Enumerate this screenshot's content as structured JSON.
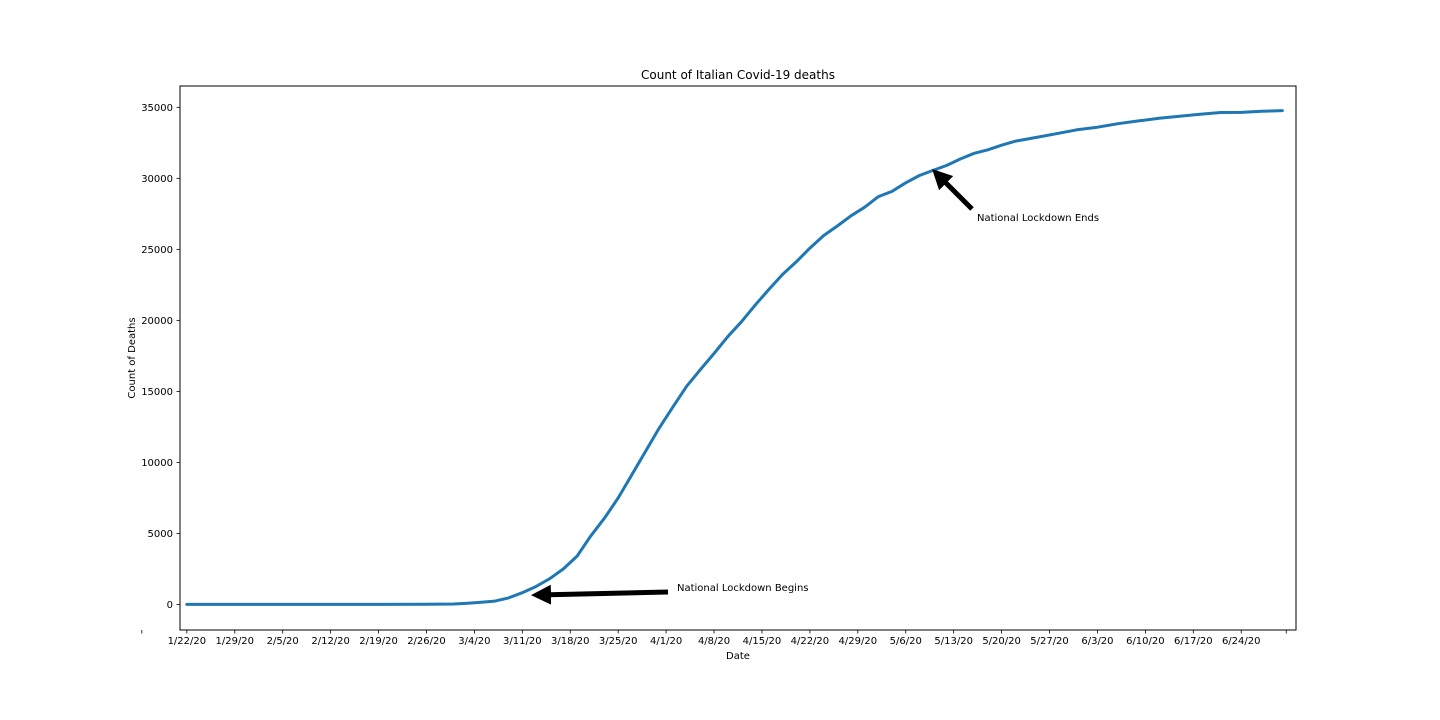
{
  "chart_data": {
    "type": "line",
    "title": "Count of Italian Covid-19 deaths",
    "xlabel": "Date",
    "ylabel": "Count of Deaths",
    "ylim": [
      -1800,
      36500
    ],
    "yticks": [
      0,
      5000,
      10000,
      15000,
      20000,
      25000,
      30000,
      35000
    ],
    "xtick_labels": [
      "1/22/20",
      "1/29/20",
      "2/5/20",
      "2/12/20",
      "2/19/20",
      "2/26/20",
      "3/4/20",
      "3/11/20",
      "3/18/20",
      "3/25/20",
      "4/1/20",
      "4/8/20",
      "4/15/20",
      "4/22/20",
      "4/29/20",
      "5/6/20",
      "5/13/20",
      "5/20/20",
      "5/27/20",
      "6/3/20",
      "6/10/20",
      "6/17/20",
      "6/24/20"
    ],
    "xlim": [
      "1/21/20",
      "7/2/20"
    ],
    "grid": false,
    "line_color": "#1f77b4",
    "series": [
      {
        "x": [
          "1/22/20",
          "2/19/20",
          "2/26/20",
          "3/1/20",
          "3/3/20",
          "3/5/20",
          "3/7/20",
          "3/9/20",
          "3/11/20",
          "3/13/20",
          "3/15/20",
          "3/17/20",
          "3/19/20",
          "3/21/20",
          "3/23/20",
          "3/25/20",
          "3/27/20",
          "3/29/20",
          "3/31/20",
          "4/2/20",
          "4/4/20",
          "4/6/20",
          "4/8/20",
          "4/10/20",
          "4/12/20",
          "4/14/20",
          "4/16/20",
          "4/18/20",
          "4/20/20",
          "4/22/20",
          "4/24/20",
          "4/26/20",
          "4/28/20",
          "4/30/20",
          "5/2/20",
          "5/4/20",
          "5/6/20",
          "5/8/20",
          "5/10/20",
          "5/12/20",
          "5/14/20",
          "5/16/20",
          "5/18/20",
          "5/20/20",
          "5/22/20",
          "5/25/20",
          "5/28/20",
          "5/31/20",
          "6/3/20",
          "6/6/20",
          "6/9/20",
          "6/12/20",
          "6/15/20",
          "6/18/20",
          "6/21/20",
          "6/24/20",
          "6/27/20",
          "6/30/20"
        ],
        "values": [
          0,
          0,
          12,
          34,
          79,
          148,
          233,
          463,
          827,
          1266,
          1809,
          2503,
          3405,
          4825,
          6077,
          7503,
          9134,
          10779,
          12428,
          13915,
          15362,
          16523,
          17669,
          18849,
          19899,
          21067,
          22170,
          23227,
          24114,
          25085,
          25969,
          26644,
          27359,
          27967,
          28710,
          29079,
          29684,
          30201,
          30560,
          30911,
          31368,
          31763,
          32007,
          32330,
          32616,
          32877,
          33142,
          33415,
          33601,
          33846,
          34043,
          34223,
          34371,
          34514,
          34634,
          34644,
          34716,
          34767
        ]
      }
    ],
    "annotations": [
      {
        "text": "National Lockdown Begins",
        "x": "3/11/20",
        "y": 827
      },
      {
        "text": "National Lockdown Ends",
        "x": "5/13/20",
        "y": 30560
      }
    ]
  }
}
